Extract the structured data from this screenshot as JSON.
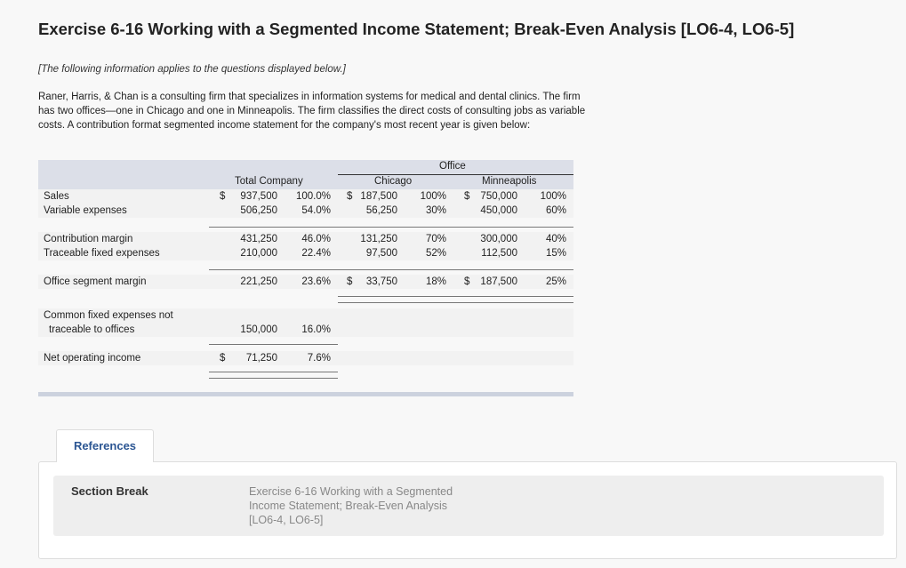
{
  "title": "Exercise 6-16 Working with a Segmented Income Statement; Break-Even Analysis [LO6-4, LO6-5]",
  "note": "[The following information applies to the questions displayed below.]",
  "paragraph": "Raner, Harris, & Chan is a consulting firm that specializes in information systems for medical and dental clinics. The firm has two offices—one in Chicago and one in Minneapolis. The firm classifies the direct costs of consulting jobs as variable costs. A contribution format segmented income statement for the company's most recent year is given below:",
  "table": {
    "office_header": "Office",
    "col_total": "Total Company",
    "col_chicago": "Chicago",
    "col_minneapolis": "Minneapolis",
    "rows": [
      {
        "label": "Sales",
        "total": "937,500",
        "total_pct": "100.0%",
        "chi": "187,500",
        "chi_pct": "100%",
        "min": "750,000",
        "min_pct": "100%"
      },
      {
        "label": "Variable expenses",
        "total": "506,250",
        "total_pct": "54.0%",
        "chi": "56,250",
        "chi_pct": "30%",
        "min": "450,000",
        "min_pct": "60%"
      },
      {
        "label": "Contribution margin",
        "total": "431,250",
        "total_pct": "46.0%",
        "chi": "131,250",
        "chi_pct": "70%",
        "min": "300,000",
        "min_pct": "40%"
      },
      {
        "label": "Traceable fixed expenses",
        "total": "210,000",
        "total_pct": "22.4%",
        "chi": "97,500",
        "chi_pct": "52%",
        "min": "112,500",
        "min_pct": "15%"
      },
      {
        "label": "Office segment margin",
        "total": "221,250",
        "total_pct": "23.6%",
        "chi": "33,750",
        "chi_pct": "18%",
        "min": "187,500",
        "min_pct": "25%"
      },
      {
        "label": "Common fixed expenses not",
        "label2": "traceable to offices",
        "total": "150,000",
        "total_pct": "16.0%"
      },
      {
        "label": "Net operating income",
        "total": "71,250",
        "total_pct": "7.6%"
      }
    ],
    "dollar": "$"
  },
  "references": {
    "tab": "References",
    "section_label": "Section Break",
    "section_value": "Exercise 6-16 Working with a Segmented Income Statement; Break-Even Analysis [LO6-4, LO6-5]"
  }
}
